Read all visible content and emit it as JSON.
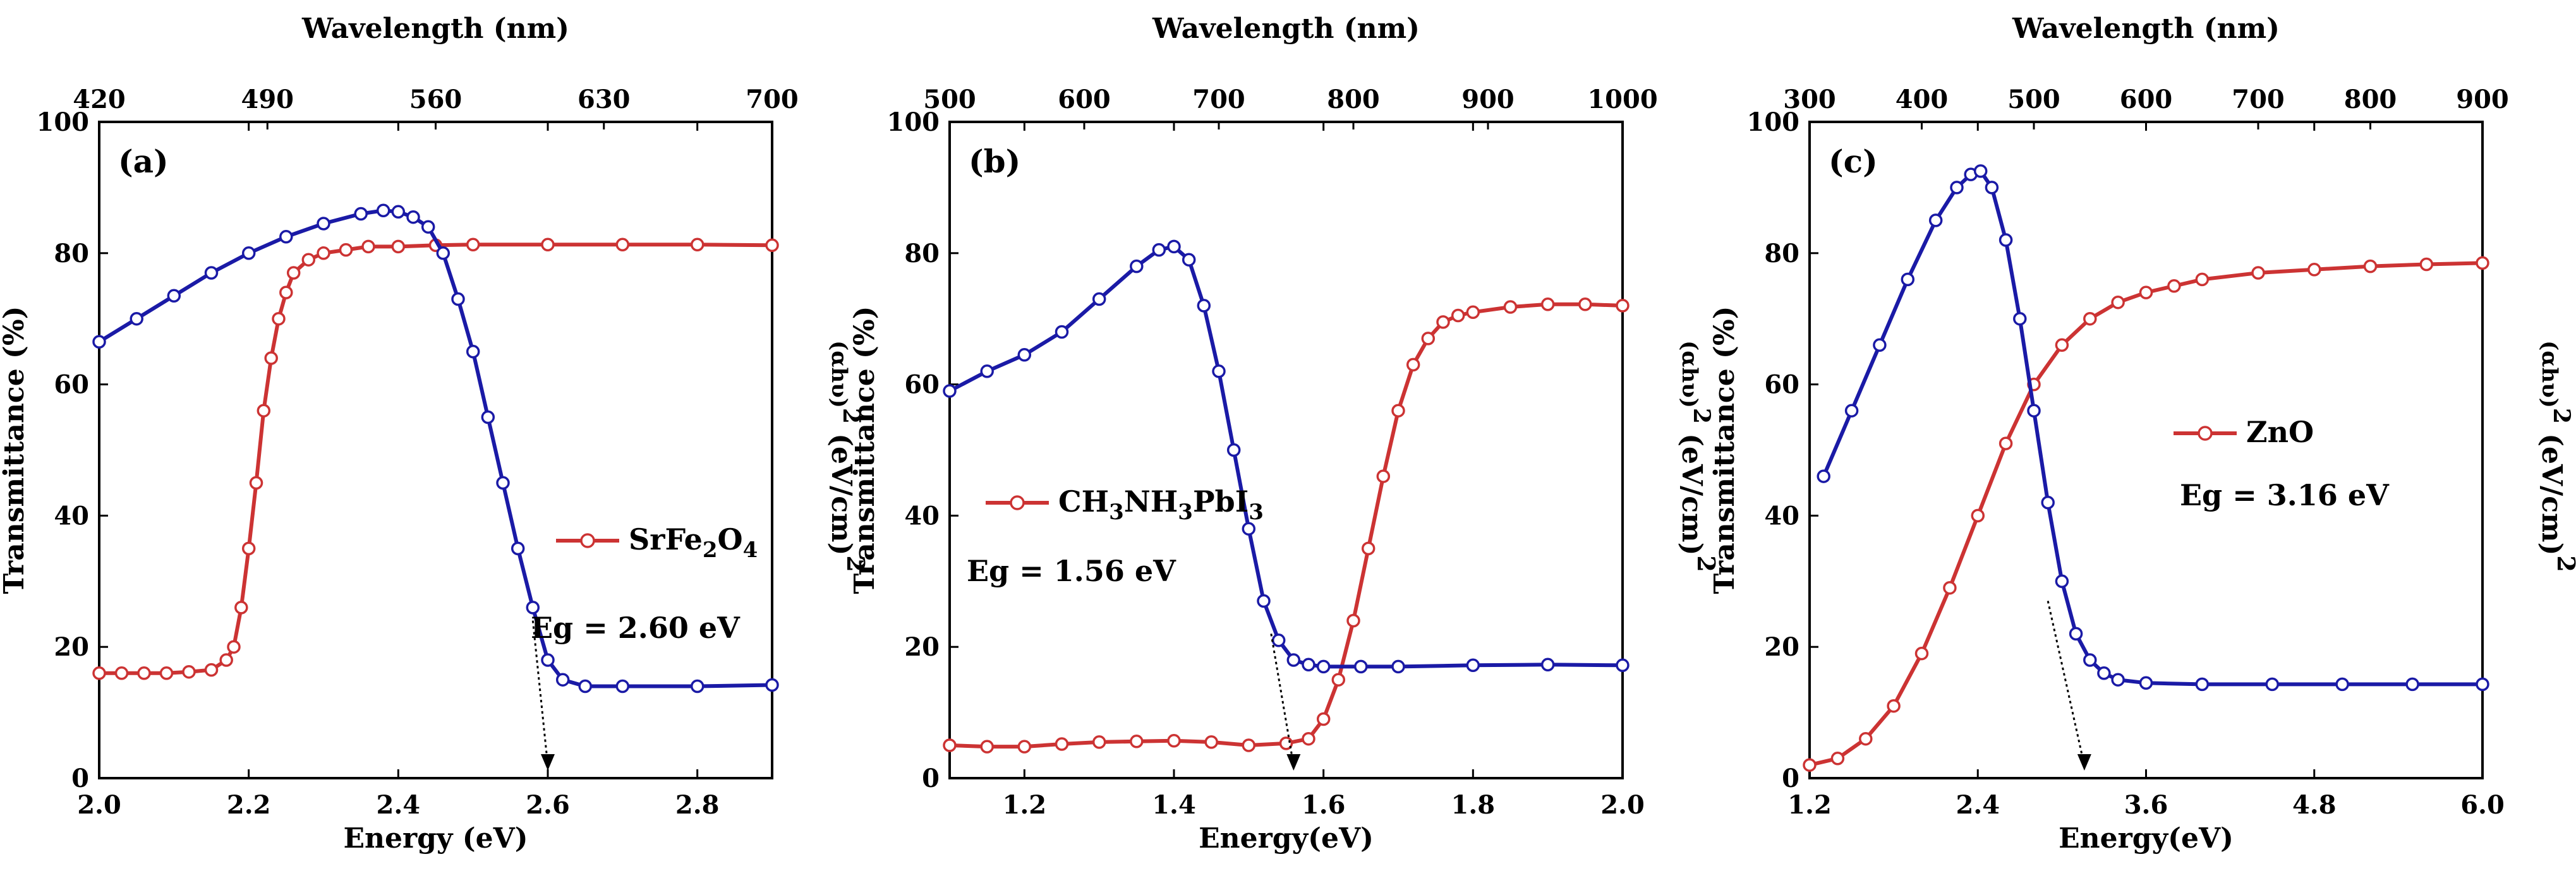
{
  "colors": {
    "red": "#cc3333",
    "blue": "#1a1aa6",
    "frame": "#000000"
  },
  "chart_data": [
    {
      "type": "line",
      "panel_label": "(a)",
      "xlabel": "Energy (eV)",
      "ylabel": "Transmittance (%)",
      "y2label_base": "(αhυ)",
      "y2label_sup": "2",
      "y2label_unit": " (eV/cm)",
      "y2label_unit_sup": "2",
      "toplabel": "Wavelength (nm)",
      "xlim": [
        2.0,
        2.9
      ],
      "ylim": [
        0,
        100
      ],
      "xticks": [
        2.0,
        2.2,
        2.4,
        2.6,
        2.8
      ],
      "xtick_labels": [
        "2.0",
        "2.2",
        "2.4",
        "2.6",
        "2.8"
      ],
      "yticks": [
        0,
        20,
        40,
        60,
        80,
        100
      ],
      "ytick_labels": [
        "0",
        "20",
        "40",
        "60",
        "80",
        "100"
      ],
      "top_tick_labels": [
        "420",
        "490",
        "560",
        "630",
        "700"
      ],
      "legend": {
        "base": "SrFe",
        "sub1": "2",
        "mid": "O",
        "sub2": "4",
        "position": "center-right"
      },
      "annotation": "Eg = 2.60 eV",
      "arrow_x": 2.6,
      "series": [
        {
          "name": "SrFe2O4 transmittance",
          "color": "red",
          "x": [
            2.0,
            2.03,
            2.06,
            2.09,
            2.12,
            2.15,
            2.17,
            2.18,
            2.19,
            2.2,
            2.21,
            2.22,
            2.23,
            2.24,
            2.25,
            2.26,
            2.28,
            2.3,
            2.33,
            2.36,
            2.4,
            2.45,
            2.5,
            2.6,
            2.7,
            2.8,
            2.9
          ],
          "y": [
            16,
            16,
            16,
            16,
            16.2,
            16.5,
            18,
            20,
            26,
            35,
            45,
            56,
            64,
            70,
            74,
            77,
            79,
            80,
            80.5,
            81,
            81,
            81.2,
            81.3,
            81.3,
            81.3,
            81.3,
            81.2
          ]
        },
        {
          "name": "(αhυ)² SrFe2O4",
          "color": "blue",
          "x": [
            2.0,
            2.05,
            2.1,
            2.15,
            2.2,
            2.25,
            2.3,
            2.35,
            2.38,
            2.4,
            2.42,
            2.44,
            2.46,
            2.48,
            2.5,
            2.52,
            2.54,
            2.56,
            2.58,
            2.6,
            2.62,
            2.65,
            2.7,
            2.8,
            2.9
          ],
          "y": [
            66.5,
            70,
            73.5,
            77,
            80,
            82.5,
            84.5,
            86,
            86.5,
            86.3,
            85.5,
            84,
            80,
            73,
            65,
            55,
            45,
            35,
            26,
            18,
            15,
            14,
            14,
            14,
            14.2
          ]
        }
      ]
    },
    {
      "type": "line",
      "panel_label": "(b)",
      "xlabel": "Energy(eV)",
      "ylabel": "Transmittance (%)",
      "y2label_base": "(αhυ)",
      "y2label_sup": "2",
      "y2label_unit": " (eV/cm)",
      "y2label_unit_sup": "2",
      "toplabel": "Wavelength (nm)",
      "xlim": [
        1.1,
        2.0
      ],
      "ylim": [
        0,
        100
      ],
      "xticks": [
        1.2,
        1.4,
        1.6,
        1.8,
        2.0
      ],
      "xtick_labels": [
        "1.2",
        "1.4",
        "1.6",
        "1.8",
        "2.0"
      ],
      "yticks": [
        0,
        20,
        40,
        60,
        80,
        100
      ],
      "ytick_labels": [
        "0",
        "20",
        "40",
        "60",
        "80",
        "100"
      ],
      "top_tick_labels": [
        "500",
        "600",
        "700",
        "800",
        "900",
        "1000"
      ],
      "legend": {
        "base": "CH",
        "sub1": "3",
        "mid": "NH",
        "sub2": "3",
        "mid2": "PbI",
        "sub3": "3",
        "position": "center-left"
      },
      "annotation": "Eg = 1.56 eV",
      "arrow_x": 1.56,
      "series": [
        {
          "name": "CH3NH3PbI3 transmittance",
          "color": "red",
          "x": [
            1.1,
            1.15,
            1.2,
            1.25,
            1.3,
            1.35,
            1.4,
            1.45,
            1.5,
            1.55,
            1.58,
            1.6,
            1.62,
            1.64,
            1.66,
            1.68,
            1.7,
            1.72,
            1.74,
            1.76,
            1.78,
            1.8,
            1.85,
            1.9,
            1.95,
            2.0
          ],
          "y": [
            5,
            4.8,
            4.8,
            5.2,
            5.5,
            5.6,
            5.7,
            5.5,
            5,
            5.3,
            6,
            9,
            15,
            24,
            35,
            46,
            56,
            63,
            67,
            69.5,
            70.5,
            71,
            71.8,
            72.2,
            72.2,
            72
          ]
        },
        {
          "name": "(αhυ)² CH3NH3PbI3",
          "color": "blue",
          "x": [
            1.1,
            1.15,
            1.2,
            1.25,
            1.3,
            1.35,
            1.38,
            1.4,
            1.42,
            1.44,
            1.46,
            1.48,
            1.5,
            1.52,
            1.54,
            1.56,
            1.58,
            1.6,
            1.65,
            1.7,
            1.8,
            1.9,
            2.0
          ],
          "y": [
            59,
            62,
            64.5,
            68,
            73,
            78,
            80.5,
            81,
            79,
            72,
            62,
            50,
            38,
            27,
            21,
            18,
            17.3,
            17,
            17,
            17,
            17.2,
            17.3,
            17.2
          ]
        }
      ]
    },
    {
      "type": "line",
      "panel_label": "(c)",
      "xlabel": "Energy(eV)",
      "ylabel": "Transmittance (%)",
      "y2label_base": "(αhυ)",
      "y2label_sup": "2",
      "y2label_unit": " (eV/cm)",
      "y2label_unit_sup": "2",
      "toplabel": "Wavelength (nm)",
      "xlim": [
        1.2,
        6.0
      ],
      "ylim": [
        0,
        100
      ],
      "xticks": [
        1.2,
        2.4,
        3.6,
        4.8,
        6.0
      ],
      "xtick_labels": [
        "1.2",
        "2.4",
        "3.6",
        "4.8",
        "6.0"
      ],
      "yticks": [
        0,
        20,
        40,
        60,
        80,
        100
      ],
      "ytick_labels": [
        "0",
        "20",
        "40",
        "60",
        "80",
        "100"
      ],
      "top_tick_labels": [
        "300",
        "400",
        "500",
        "600",
        "700",
        "800",
        "900"
      ],
      "legend": {
        "base": "ZnO",
        "position": "center-right"
      },
      "annotation": "Eg = 3.16 eV",
      "arrow_x": 3.16,
      "series": [
        {
          "name": "ZnO transmittance",
          "color": "red",
          "x": [
            1.2,
            1.4,
            1.6,
            1.8,
            2.0,
            2.2,
            2.4,
            2.6,
            2.8,
            3.0,
            3.2,
            3.4,
            3.6,
            3.8,
            4.0,
            4.4,
            4.8,
            5.2,
            5.6,
            6.0
          ],
          "y": [
            2,
            3,
            6,
            11,
            19,
            29,
            40,
            51,
            60,
            66,
            70,
            72.5,
            74,
            75,
            76,
            77,
            77.5,
            78,
            78.3,
            78.5
          ]
        },
        {
          "name": "(αhυ)² ZnO",
          "color": "blue",
          "x": [
            1.3,
            1.5,
            1.7,
            1.9,
            2.1,
            2.25,
            2.35,
            2.42,
            2.5,
            2.6,
            2.7,
            2.8,
            2.9,
            3.0,
            3.1,
            3.2,
            3.3,
            3.4,
            3.6,
            4.0,
            4.5,
            5.0,
            5.5,
            6.0
          ],
          "y": [
            46,
            56,
            66,
            76,
            85,
            90,
            92,
            92.5,
            90,
            82,
            70,
            56,
            42,
            30,
            22,
            18,
            16,
            15,
            14.5,
            14.3,
            14.3,
            14.3,
            14.3,
            14.3
          ]
        }
      ]
    }
  ]
}
